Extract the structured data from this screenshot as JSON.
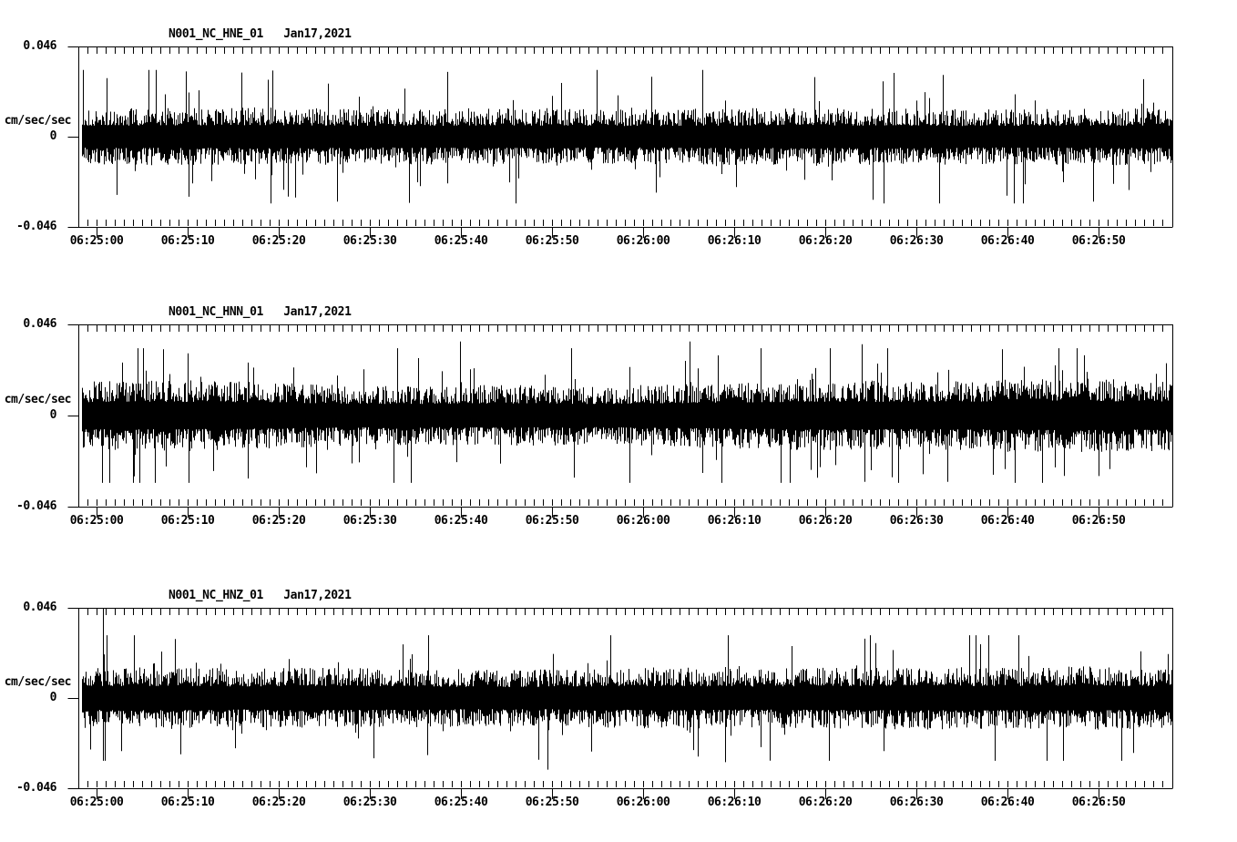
{
  "figure": {
    "background_color": "#ffffff",
    "ink_color": "#000000",
    "kind": "three-channel seismogram strip plot"
  },
  "chart_data": [
    {
      "type": "line",
      "title": "N001_NC_HNE_01   Jan17,2021",
      "station_channel": "N001_NC_HNE_01",
      "date": "Jan17,2021",
      "ylabel": "cm/sec/sec",
      "y_tick_labels": [
        "0.046",
        "0",
        "-0.046"
      ],
      "ylim": [
        -0.046,
        0.046
      ],
      "x_tick_labels": [
        "06:25:00",
        "06:25:10",
        "06:25:20",
        "06:25:30",
        "06:25:40",
        "06:25:50",
        "06:26:00",
        "06:26:10",
        "06:26:20",
        "06:26:30",
        "06:26:40",
        "06:26:50"
      ],
      "x_major_tick_seconds": 10,
      "x_minor_tick_seconds": 1,
      "series": {
        "name": "N001.NC.HNE.01",
        "kind": "seismic-noise",
        "seed": 1317,
        "base_amplitude": 0.0112,
        "amplitude_cap": 0.034,
        "spike_probability": 0.045,
        "envelope": [
          1.0,
          1.02,
          1.05,
          0.98,
          1.0,
          1.02,
          0.97,
          1.0,
          1.04,
          1.0,
          0.97,
          1.02,
          1.0
        ],
        "events": [
          {
            "t": 0.146,
            "amp": 0.0327,
            "dir": 1
          },
          {
            "t": 0.185,
            "amp": 0.0271,
            "dir": -1
          },
          {
            "t": 0.335,
            "amp": 0.0238,
            "dir": -1
          },
          {
            "t": 0.6,
            "amp": 0.0257,
            "dir": -1
          },
          {
            "t": 0.672,
            "amp": 0.0304,
            "dir": 1
          },
          {
            "t": 0.865,
            "amp": 0.0243,
            "dir": -1
          }
        ]
      }
    },
    {
      "type": "line",
      "title": "N001_NC_HNN_01   Jan17,2021",
      "station_channel": "N001_NC_HNN_01",
      "date": "Jan17,2021",
      "ylabel": "cm/sec/sec",
      "y_tick_labels": [
        "0.046",
        "0",
        "-0.046"
      ],
      "ylim": [
        -0.046,
        0.046
      ],
      "x_tick_labels": [
        "06:25:00",
        "06:25:10",
        "06:25:20",
        "06:25:30",
        "06:25:40",
        "06:25:50",
        "06:26:00",
        "06:26:10",
        "06:26:20",
        "06:26:30",
        "06:26:40",
        "06:26:50"
      ],
      "x_major_tick_seconds": 10,
      "x_minor_tick_seconds": 1,
      "series": {
        "name": "N001.NC.HNN.01",
        "kind": "seismic-noise",
        "seed": 2021,
        "base_amplitude": 0.0121,
        "amplitude_cap": 0.034,
        "spike_probability": 0.05,
        "envelope": [
          1.12,
          1.15,
          1.1,
          1.0,
          0.96,
          1.0,
          0.96,
          1.02,
          1.1,
          1.16,
          1.12,
          1.18,
          1.2,
          1.16
        ],
        "events": [
          {
            "t": 0.077,
            "amp": 0.0257,
            "dir": -1
          },
          {
            "t": 0.12,
            "amp": 0.028,
            "dir": -1
          },
          {
            "t": 0.152,
            "amp": 0.0318,
            "dir": -1
          },
          {
            "t": 0.347,
            "amp": 0.0374,
            "dir": 1
          },
          {
            "t": 0.558,
            "amp": 0.0374,
            "dir": 1
          },
          {
            "t": 0.569,
            "amp": 0.029,
            "dir": -1
          },
          {
            "t": 0.716,
            "amp": 0.036,
            "dir": 1
          },
          {
            "t": 0.92,
            "amp": 0.0304,
            "dir": 1
          }
        ]
      }
    },
    {
      "type": "line",
      "title": "N001_NC_HNZ_01   Jan17,2021",
      "station_channel": "N001_NC_HNZ_01",
      "date": "Jan17,2021",
      "ylabel": "cm/sec/sec",
      "y_tick_labels": [
        "0.046",
        "0",
        "-0.046"
      ],
      "ylim": [
        -0.046,
        0.046
      ],
      "x_tick_labels": [
        "06:25:00",
        "06:25:10",
        "06:25:20",
        "06:25:30",
        "06:25:40",
        "06:25:50",
        "06:26:00",
        "06:26:10",
        "06:26:20",
        "06:26:30",
        "06:26:40",
        "06:26:50"
      ],
      "x_major_tick_seconds": 10,
      "x_minor_tick_seconds": 1,
      "series": {
        "name": "N001.NC.HNZ.01",
        "kind": "seismic-noise",
        "seed": 4242,
        "base_amplitude": 0.0117,
        "amplitude_cap": 0.032,
        "spike_probability": 0.045,
        "envelope": [
          1.02,
          1.06,
          1.0,
          1.04,
          1.0,
          0.96,
          1.0,
          1.05,
          1.0,
          1.04,
          1.08,
          1.04,
          1.08,
          1.02
        ],
        "events": [
          {
            "t": 0.019,
            "amp": 0.0458,
            "dir": 1
          },
          {
            "t": 0.427,
            "amp": 0.0365,
            "dir": -1
          },
          {
            "t": 0.59,
            "amp": 0.0327,
            "dir": -1
          },
          {
            "t": 0.728,
            "amp": 0.028,
            "dir": 1
          },
          {
            "t": 0.965,
            "amp": 0.028,
            "dir": -1
          }
        ]
      }
    }
  ]
}
